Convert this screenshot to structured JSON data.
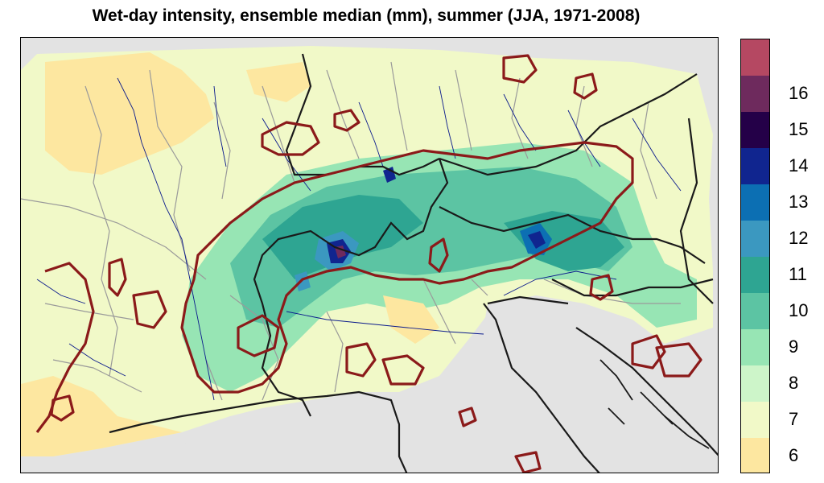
{
  "title": "Wet-day intensity, ensemble median (mm), summer (JJA, 1971-2008)",
  "legend": {
    "unit": "mm",
    "bins": [
      {
        "label": "6",
        "color": "#fde7a0"
      },
      {
        "label": "7",
        "color": "#f1f9c8"
      },
      {
        "label": "8",
        "color": "#cdf5c9"
      },
      {
        "label": "9",
        "color": "#97e5b4"
      },
      {
        "label": "10",
        "color": "#5cc4a3"
      },
      {
        "label": "11",
        "color": "#2ea592"
      },
      {
        "label": "12",
        "color": "#3b98c0"
      },
      {
        "label": "13",
        "color": "#0c6fb3"
      },
      {
        "label": "14",
        "color": "#10258f"
      },
      {
        "label": "15",
        "color": "#240048"
      },
      {
        "label": "16",
        "color": "#6e2a5d"
      },
      {
        "label": "",
        "color": "#b54862"
      }
    ]
  },
  "map": {
    "background_color": "#e3e3e3",
    "country_border_color": "#1a1a1a",
    "basin_border_color": "#9a9a9a",
    "river_color": "#0a1a8c",
    "contour_color": "#8b1a1a"
  }
}
